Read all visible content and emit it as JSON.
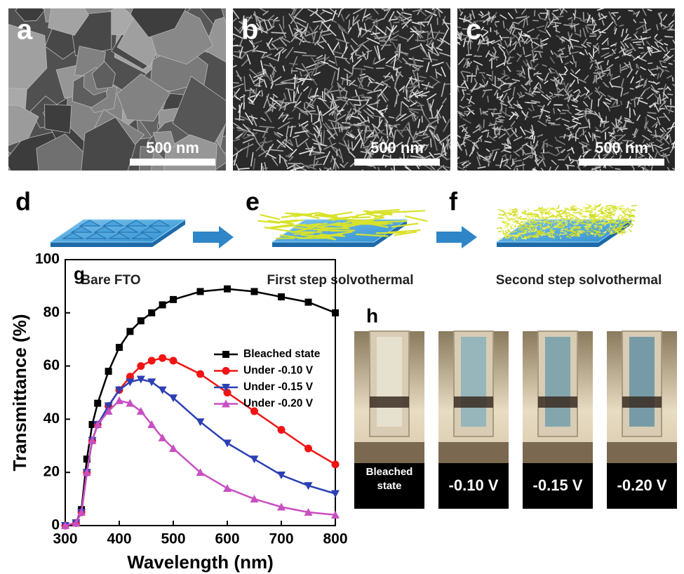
{
  "sem_panels": [
    {
      "label": "a",
      "scale_bar": "500 nm"
    },
    {
      "label": "b",
      "scale_bar": "500 nm"
    },
    {
      "label": "c",
      "scale_bar": "500 nm"
    }
  ],
  "schematic": {
    "steps": [
      {
        "label": "d",
        "caption": "Bare FTO"
      },
      {
        "label": "e",
        "caption": "First step solvothermal"
      },
      {
        "label": "f",
        "caption": "Second step solvothermal"
      }
    ]
  },
  "chart_data": {
    "type": "line",
    "panel_label": "g",
    "xlabel": "Wavelength (nm)",
    "ylabel": "Transmittance (%)",
    "x": [
      300,
      320,
      330,
      340,
      350,
      360,
      380,
      400,
      420,
      440,
      460,
      480,
      500,
      550,
      600,
      650,
      700,
      750,
      800
    ],
    "series": [
      {
        "name": "Bleached state",
        "color": "#000000",
        "marker": "square",
        "values": [
          0,
          1,
          6,
          25,
          38,
          46,
          58,
          67,
          73,
          77,
          80,
          83,
          85,
          88,
          89,
          88,
          86,
          84,
          80
        ]
      },
      {
        "name": "Under -0.10 V",
        "color": "#f01414",
        "marker": "circle",
        "values": [
          0,
          1,
          5,
          20,
          32,
          38,
          45,
          51,
          56,
          60,
          62,
          63,
          62,
          57,
          50,
          43,
          36,
          29,
          23
        ]
      },
      {
        "name": "Under -0.15 V",
        "color": "#2b3fb5",
        "marker": "triangle-down",
        "values": [
          0,
          1,
          5,
          20,
          32,
          38,
          45,
          51,
          54,
          55,
          54,
          51,
          48,
          39,
          31,
          25,
          19,
          15,
          12
        ]
      },
      {
        "name": "Under -0.20 V",
        "color": "#c84fc2",
        "marker": "triangle-up",
        "values": [
          0,
          1,
          5,
          20,
          32,
          38,
          43,
          47,
          46,
          43,
          38,
          33,
          29,
          20,
          14,
          10,
          7,
          5,
          4
        ]
      }
    ],
    "xlim": [
      300,
      800
    ],
    "ylim": [
      0,
      100
    ],
    "xticks": [
      300,
      400,
      500,
      600,
      700,
      800
    ],
    "yticks": [
      0,
      20,
      40,
      60,
      80,
      100
    ],
    "legend": "upper right"
  },
  "photos": {
    "label": "h",
    "items": [
      "Bleached state",
      "-0.10 V",
      "-0.15 V",
      "-0.20 V"
    ]
  }
}
